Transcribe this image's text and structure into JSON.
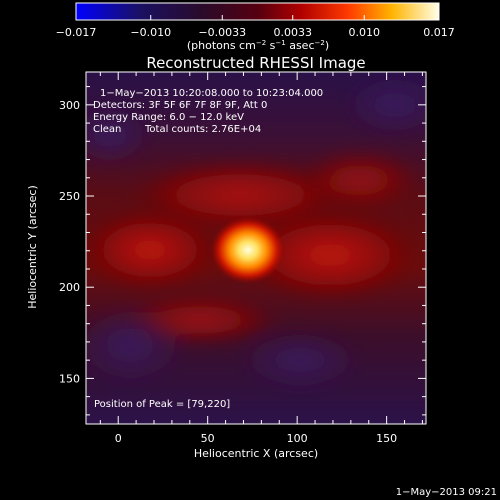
{
  "colorbar": {
    "ticks": [
      "−0.017",
      "−0.010",
      "−0.0033",
      "0.0033",
      "0.010",
      "0.017"
    ],
    "tick_values": [
      -0.017,
      -0.01,
      -0.0033,
      0.0033,
      0.01,
      0.017
    ],
    "units_prefix": "(photons cm",
    "units_exp1": "−2",
    "units_mid": " s",
    "units_exp2": "−1",
    "units_mid2": " asec",
    "units_exp3": "−2",
    "units_suffix": ")",
    "colors": [
      "#0000ff",
      "#1a0d30",
      "#3a0a2a",
      "#8a0000",
      "#ff2a00",
      "#ffb000",
      "#ffffe6"
    ]
  },
  "image": {
    "title": "Reconstructed RHESSI Image",
    "time_range": "1−May−2013 10:20:08.000 to 10:23:04.000",
    "detectors": "Detectors: 3F 5F 6F 7F 8F 9F, Att 0",
    "energy": "Energy Range: 6.0 − 12.0 keV",
    "method": "Clean",
    "total_counts": "Total counts: 2.76E+04",
    "peak": "Position of Peak = [79,220]",
    "xlabel": "Heliocentric X (arcsec)",
    "ylabel": "Heliocentric Y (arcsec)"
  },
  "chart_data": {
    "type": "heatmap",
    "xlim": [
      -18,
      172
    ],
    "ylim": [
      125,
      318
    ],
    "x_ticks": [
      0,
      50,
      100,
      150
    ],
    "y_ticks": [
      150,
      200,
      250,
      300
    ],
    "x_tick_labels": [
      "0",
      "50",
      "100",
      "150"
    ],
    "y_tick_labels": [
      "150",
      "200",
      "250",
      "300"
    ],
    "peak_position": [
      79,
      220
    ]
  },
  "timestamp": "1−May−2013 09:21"
}
